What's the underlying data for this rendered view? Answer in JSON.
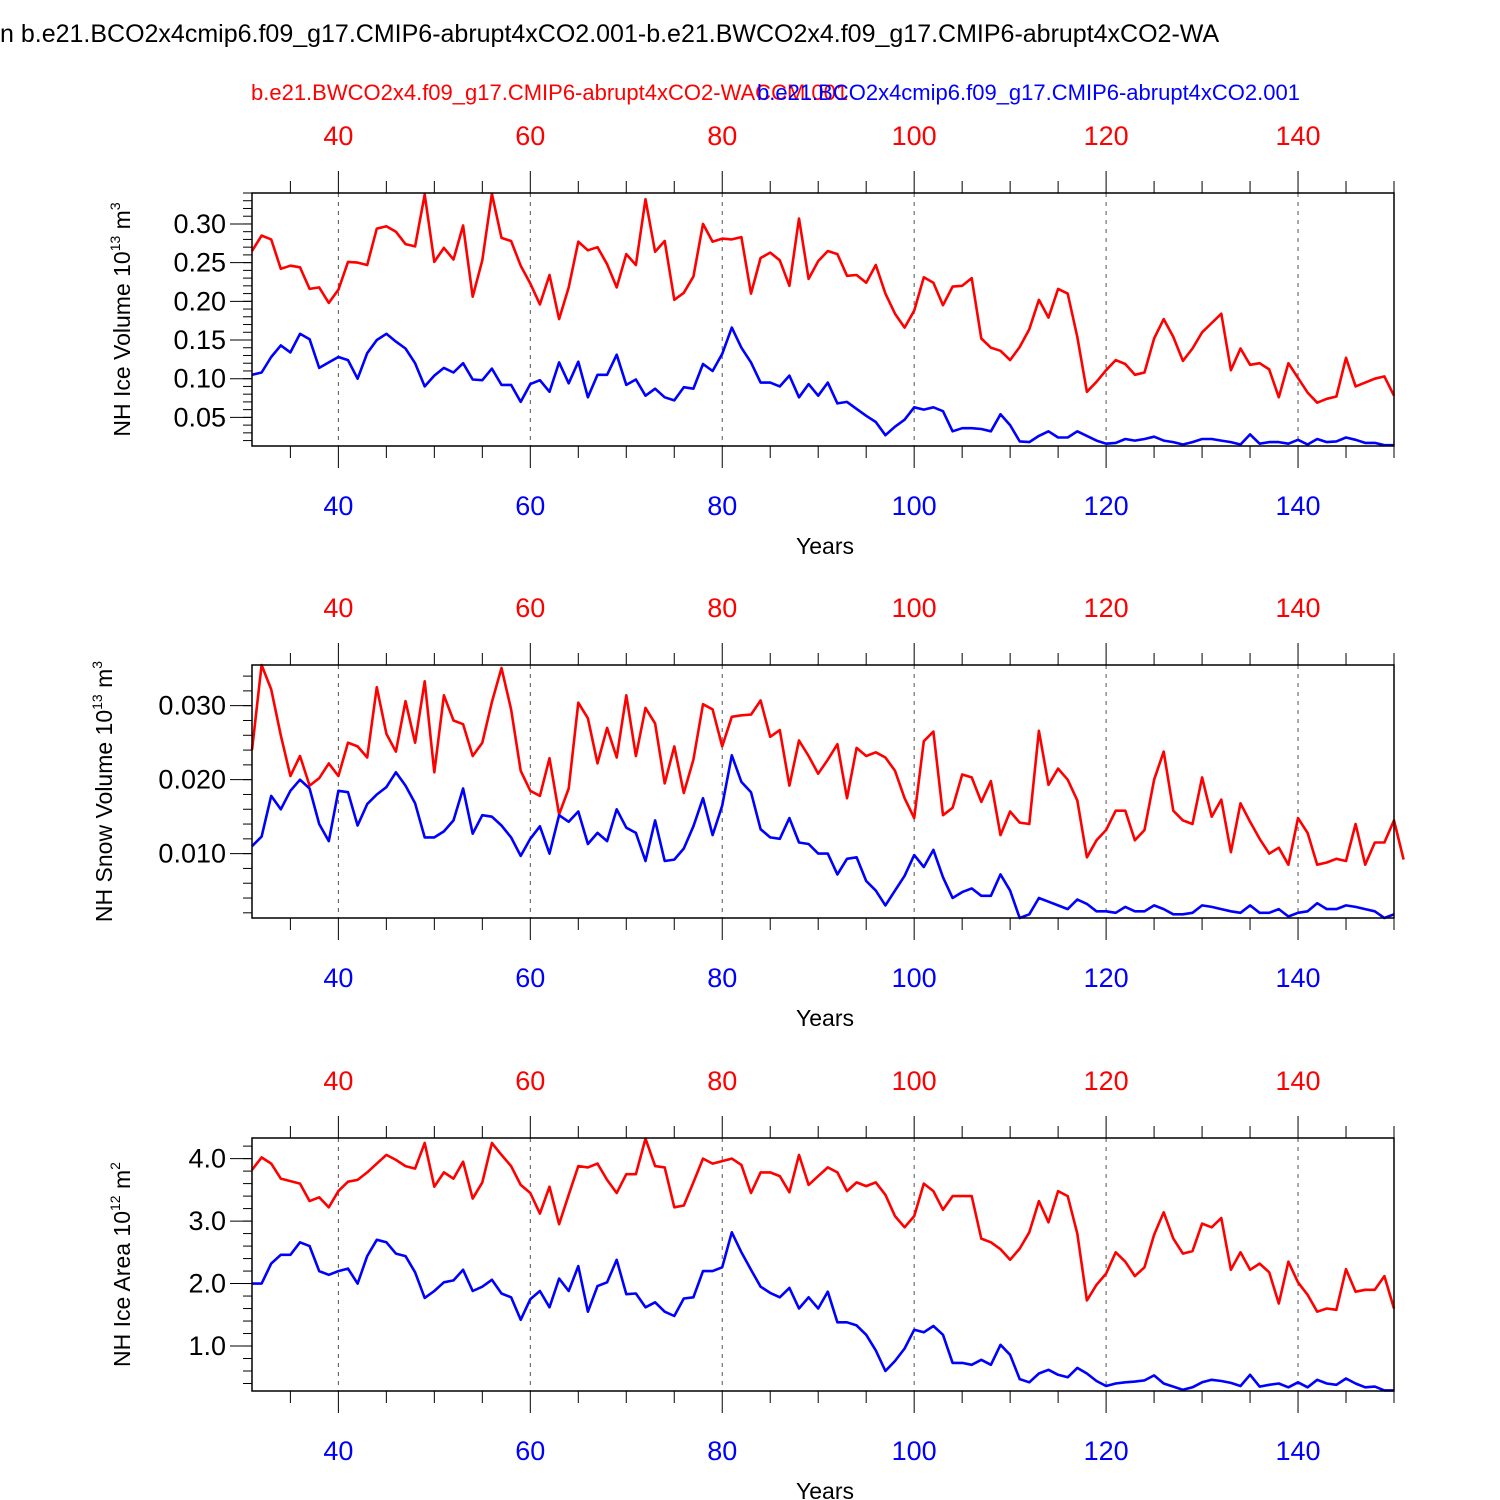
{
  "figure": {
    "title": "n b.e21.BCO2x4cmip6.f09_g17.CMIP6-abrupt4xCO2.001-b.e21.BWCO2x4.f09_g17.CMIP6-abrupt4xCO2-WA",
    "series_labels": {
      "red": "b.e21.BWCO2x4.f09_g17.CMIP6-abrupt4xCO2-WACCM.001",
      "blue": "b.e21.BCO2x4cmip6.f09_g17.CMIP6-abrupt4xCO2.001"
    },
    "colors": {
      "red": "#ff0000",
      "blue": "#0000ff",
      "axis": "#000000"
    }
  },
  "chart_data": [
    {
      "type": "line",
      "title": "",
      "xlabel": "Years",
      "ylabel": "NH Ice Volume 10",
      "ylabel_exp": "13",
      "ylabel_unit": " m",
      "ylabel_unit_exp": "3",
      "xlim": [
        31,
        150
      ],
      "ylim": [
        0.013,
        0.34
      ],
      "x_ticks": [
        40,
        60,
        80,
        100,
        120,
        140
      ],
      "x_tick_labels": [
        "40",
        "60",
        "80",
        "100",
        "120",
        "140"
      ],
      "y_ticks": [
        0.05,
        0.1,
        0.15,
        0.2,
        0.25,
        0.3
      ],
      "y_tick_labels": [
        "0.05",
        "0.10",
        "0.15",
        "0.20",
        "0.25",
        "0.30"
      ],
      "y_minor_step": 0.01,
      "grid": "vertical dashed at major x ticks",
      "x_start": 31,
      "series": [
        {
          "name": "b.e21.BWCO2x4.f09_g17.CMIP6-abrupt4xCO2-WACCM.001",
          "color": "red",
          "values": [
            0.265,
            0.285,
            0.28,
            0.242,
            0.246,
            0.244,
            0.216,
            0.218,
            0.198,
            0.215,
            0.251,
            0.25,
            0.247,
            0.294,
            0.297,
            0.29,
            0.274,
            0.271,
            0.338,
            0.251,
            0.269,
            0.254,
            0.298,
            0.206,
            0.253,
            0.339,
            0.282,
            0.278,
            0.246,
            0.223,
            0.196,
            0.234,
            0.177,
            0.218,
            0.277,
            0.266,
            0.27,
            0.248,
            0.218,
            0.261,
            0.247,
            0.332,
            0.264,
            0.278,
            0.202,
            0.211,
            0.232,
            0.3,
            0.277,
            0.281,
            0.28,
            0.283,
            0.21,
            0.256,
            0.263,
            0.253,
            0.22,
            0.307,
            0.229,
            0.252,
            0.265,
            0.261,
            0.233,
            0.234,
            0.224,
            0.247,
            0.21,
            0.184,
            0.166,
            0.188,
            0.231,
            0.224,
            0.195,
            0.219,
            0.22,
            0.23,
            0.152,
            0.14,
            0.136,
            0.124,
            0.141,
            0.164,
            0.202,
            0.179,
            0.216,
            0.21,
            0.154,
            0.083,
            0.096,
            0.111,
            0.124,
            0.119,
            0.105,
            0.108,
            0.152,
            0.177,
            0.154,
            0.123,
            0.139,
            0.16,
            0.172,
            0.184,
            0.111,
            0.139,
            0.118,
            0.12,
            0.112,
            0.076,
            0.12,
            0.101,
            0.082,
            0.069,
            0.074,
            0.077,
            0.127,
            0.09,
            0.095,
            0.1,
            0.103,
            0.078
          ]
        },
        {
          "name": "b.e21.BCO2x4cmip6.f09_g17.CMIP6-abrupt4xCO2.001",
          "color": "blue",
          "values": [
            0.105,
            0.108,
            0.128,
            0.143,
            0.134,
            0.158,
            0.151,
            0.114,
            0.121,
            0.128,
            0.124,
            0.1,
            0.133,
            0.15,
            0.158,
            0.148,
            0.139,
            0.12,
            0.09,
            0.104,
            0.114,
            0.108,
            0.12,
            0.099,
            0.098,
            0.113,
            0.092,
            0.092,
            0.07,
            0.093,
            0.098,
            0.083,
            0.121,
            0.094,
            0.122,
            0.076,
            0.105,
            0.105,
            0.131,
            0.092,
            0.099,
            0.078,
            0.087,
            0.076,
            0.072,
            0.089,
            0.087,
            0.119,
            0.11,
            0.132,
            0.166,
            0.14,
            0.121,
            0.095,
            0.095,
            0.09,
            0.104,
            0.076,
            0.093,
            0.078,
            0.095,
            0.068,
            0.07,
            0.061,
            0.052,
            0.044,
            0.027,
            0.038,
            0.047,
            0.063,
            0.06,
            0.063,
            0.058,
            0.032,
            0.036,
            0.036,
            0.035,
            0.032,
            0.054,
            0.04,
            0.019,
            0.018,
            0.026,
            0.032,
            0.024,
            0.024,
            0.032,
            0.026,
            0.02,
            0.016,
            0.017,
            0.022,
            0.02,
            0.022,
            0.025,
            0.02,
            0.018,
            0.015,
            0.018,
            0.022,
            0.022,
            0.02,
            0.018,
            0.015,
            0.028,
            0.016,
            0.018,
            0.018,
            0.016,
            0.021,
            0.015,
            0.022,
            0.018,
            0.019,
            0.024,
            0.021,
            0.017,
            0.017,
            0.014,
            0.014
          ]
        }
      ]
    },
    {
      "type": "line",
      "title": "",
      "xlabel": "Years",
      "ylabel": "NH Snow Volume 10",
      "ylabel_exp": "13",
      "ylabel_unit": " m",
      "ylabel_unit_exp": "3",
      "xlim": [
        31,
        150
      ],
      "ylim": [
        0.0013,
        0.0355
      ],
      "x_ticks": [
        40,
        60,
        80,
        100,
        120,
        140
      ],
      "x_tick_labels": [
        "40",
        "60",
        "80",
        "100",
        "120",
        "140"
      ],
      "y_ticks": [
        0.01,
        0.02,
        0.03
      ],
      "y_tick_labels": [
        "0.010",
        "0.020",
        "0.030"
      ],
      "y_minor_step": 0.002,
      "grid": "vertical dashed at major x ticks",
      "x_start": 31,
      "series": [
        {
          "name": "b.e21.BWCO2x4.f09_g17.CMIP6-abrupt4xCO2-WACCM.001",
          "color": "red",
          "values": [
            0.024,
            0.0355,
            0.0322,
            0.026,
            0.0205,
            0.0232,
            0.0192,
            0.0202,
            0.0222,
            0.0205,
            0.025,
            0.0245,
            0.023,
            0.0325,
            0.0262,
            0.0238,
            0.0306,
            0.025,
            0.0333,
            0.021,
            0.0314,
            0.028,
            0.0275,
            0.0232,
            0.025,
            0.0305,
            0.0351,
            0.0295,
            0.0212,
            0.0185,
            0.0178,
            0.0229,
            0.0153,
            0.0188,
            0.0304,
            0.0283,
            0.0222,
            0.027,
            0.023,
            0.0314,
            0.0232,
            0.0297,
            0.0276,
            0.0195,
            0.0245,
            0.0182,
            0.0227,
            0.0302,
            0.0295,
            0.0245,
            0.0285,
            0.0287,
            0.0288,
            0.0307,
            0.0258,
            0.0267,
            0.0192,
            0.0253,
            0.0232,
            0.0208,
            0.0227,
            0.0248,
            0.0175,
            0.0243,
            0.0232,
            0.0237,
            0.023,
            0.0212,
            0.0175,
            0.0148,
            0.0252,
            0.0265,
            0.0152,
            0.0162,
            0.0207,
            0.0203,
            0.017,
            0.0198,
            0.0125,
            0.0157,
            0.0142,
            0.014,
            0.0266,
            0.0193,
            0.0215,
            0.02,
            0.0172,
            0.0095,
            0.0118,
            0.0132,
            0.0158,
            0.0158,
            0.0118,
            0.0132,
            0.02,
            0.0238,
            0.0158,
            0.0145,
            0.014,
            0.0203,
            0.015,
            0.0173,
            0.0102,
            0.0168,
            0.0143,
            0.012,
            0.01,
            0.0108,
            0.0085,
            0.0148,
            0.0128,
            0.0085,
            0.0088,
            0.0093,
            0.009,
            0.014,
            0.0085,
            0.0115,
            0.0115,
            0.0145,
            0.0092
          ]
        },
        {
          "name": "b.e21.BCO2x4cmip6.f09_g17.CMIP6-abrupt4xCO2.001",
          "color": "blue",
          "values": [
            0.011,
            0.0123,
            0.0178,
            0.016,
            0.0185,
            0.02,
            0.0188,
            0.014,
            0.0117,
            0.0185,
            0.0183,
            0.0138,
            0.0167,
            0.018,
            0.019,
            0.021,
            0.0192,
            0.0168,
            0.0122,
            0.0122,
            0.013,
            0.0145,
            0.0188,
            0.0127,
            0.0152,
            0.015,
            0.0138,
            0.0122,
            0.0097,
            0.012,
            0.0137,
            0.01,
            0.0152,
            0.0143,
            0.0157,
            0.0113,
            0.0128,
            0.0117,
            0.016,
            0.0135,
            0.0128,
            0.009,
            0.0145,
            0.009,
            0.0092,
            0.0107,
            0.0137,
            0.0175,
            0.0125,
            0.0165,
            0.0233,
            0.0197,
            0.0183,
            0.0133,
            0.0122,
            0.012,
            0.0148,
            0.0115,
            0.0113,
            0.01,
            0.01,
            0.0072,
            0.0093,
            0.0095,
            0.0063,
            0.005,
            0.003,
            0.005,
            0.007,
            0.0098,
            0.0082,
            0.0105,
            0.0068,
            0.004,
            0.0048,
            0.0053,
            0.0043,
            0.0043,
            0.0072,
            0.005,
            0.0013,
            0.0018,
            0.004,
            0.0035,
            0.003,
            0.0025,
            0.0038,
            0.0032,
            0.0022,
            0.0022,
            0.002,
            0.0028,
            0.0022,
            0.0022,
            0.003,
            0.0025,
            0.0018,
            0.0018,
            0.002,
            0.003,
            0.0028,
            0.0025,
            0.0022,
            0.002,
            0.003,
            0.002,
            0.002,
            0.0025,
            0.0015,
            0.002,
            0.0022,
            0.0033,
            0.0025,
            0.0025,
            0.003,
            0.0028,
            0.0025,
            0.0022,
            0.0013,
            0.0018
          ]
        }
      ]
    },
    {
      "type": "line",
      "title": "",
      "xlabel": "Years",
      "ylabel": "NH Ice Area 10",
      "ylabel_exp": "12",
      "ylabel_unit": " m",
      "ylabel_unit_exp": "2",
      "xlim": [
        31,
        150
      ],
      "ylim": [
        0.28,
        4.33
      ],
      "x_ticks": [
        40,
        60,
        80,
        100,
        120,
        140
      ],
      "x_tick_labels": [
        "40",
        "60",
        "80",
        "100",
        "120",
        "140"
      ],
      "y_ticks": [
        1.0,
        2.0,
        3.0,
        4.0
      ],
      "y_tick_labels": [
        "1.0",
        "2.0",
        "3.0",
        "4.0"
      ],
      "y_minor_step": 0.2,
      "grid": "vertical dashed at major x ticks",
      "x_start": 31,
      "series": [
        {
          "name": "b.e21.BWCO2x4.f09_g17.CMIP6-abrupt4xCO2-WACCM.001",
          "color": "red",
          "values": [
            3.82,
            4.02,
            3.92,
            3.68,
            3.64,
            3.6,
            3.32,
            3.38,
            3.22,
            3.48,
            3.63,
            3.66,
            3.78,
            3.92,
            4.06,
            3.98,
            3.88,
            3.84,
            4.25,
            3.55,
            3.78,
            3.68,
            3.95,
            3.36,
            3.62,
            4.25,
            4.06,
            3.88,
            3.58,
            3.45,
            3.12,
            3.55,
            2.95,
            3.42,
            3.88,
            3.86,
            3.92,
            3.66,
            3.45,
            3.75,
            3.75,
            4.32,
            3.88,
            3.86,
            3.22,
            3.25,
            3.62,
            4.0,
            3.92,
            3.96,
            4.0,
            3.9,
            3.45,
            3.78,
            3.78,
            3.72,
            3.46,
            4.06,
            3.58,
            3.72,
            3.86,
            3.78,
            3.48,
            3.62,
            3.56,
            3.62,
            3.42,
            3.08,
            2.9,
            3.08,
            3.6,
            3.48,
            3.18,
            3.4,
            3.4,
            3.4,
            2.72,
            2.66,
            2.55,
            2.38,
            2.56,
            2.82,
            3.32,
            2.98,
            3.48,
            3.4,
            2.8,
            1.73,
            1.98,
            2.16,
            2.5,
            2.35,
            2.12,
            2.26,
            2.78,
            3.14,
            2.72,
            2.48,
            2.52,
            2.96,
            2.9,
            3.05,
            2.22,
            2.5,
            2.22,
            2.32,
            2.18,
            1.68,
            2.35,
            2.02,
            1.82,
            1.55,
            1.6,
            1.58,
            2.23,
            1.87,
            1.9,
            1.9,
            2.12,
            1.6
          ]
        },
        {
          "name": "b.e21.BCO2x4cmip6.f09_g17.CMIP6-abrupt4xCO2.001",
          "color": "blue",
          "values": [
            2.0,
            2.0,
            2.32,
            2.46,
            2.46,
            2.66,
            2.6,
            2.2,
            2.14,
            2.2,
            2.24,
            2.0,
            2.44,
            2.7,
            2.66,
            2.48,
            2.44,
            2.18,
            1.77,
            1.88,
            2.02,
            2.05,
            2.22,
            1.88,
            1.95,
            2.06,
            1.84,
            1.78,
            1.42,
            1.75,
            1.88,
            1.62,
            2.08,
            1.88,
            2.28,
            1.55,
            1.96,
            2.02,
            2.38,
            1.83,
            1.84,
            1.62,
            1.7,
            1.55,
            1.48,
            1.76,
            1.78,
            2.2,
            2.2,
            2.26,
            2.82,
            2.5,
            2.22,
            1.95,
            1.85,
            1.78,
            1.93,
            1.6,
            1.78,
            1.6,
            1.87,
            1.38,
            1.38,
            1.33,
            1.18,
            0.93,
            0.6,
            0.76,
            0.96,
            1.26,
            1.22,
            1.32,
            1.18,
            0.73,
            0.73,
            0.7,
            0.78,
            0.7,
            1.02,
            0.86,
            0.47,
            0.42,
            0.56,
            0.62,
            0.54,
            0.5,
            0.65,
            0.56,
            0.44,
            0.36,
            0.4,
            0.42,
            0.43,
            0.45,
            0.53,
            0.4,
            0.35,
            0.3,
            0.34,
            0.42,
            0.46,
            0.44,
            0.41,
            0.36,
            0.54,
            0.35,
            0.38,
            0.4,
            0.34,
            0.42,
            0.34,
            0.46,
            0.4,
            0.38,
            0.48,
            0.4,
            0.34,
            0.35,
            0.29,
            0.29
          ]
        }
      ]
    }
  ]
}
